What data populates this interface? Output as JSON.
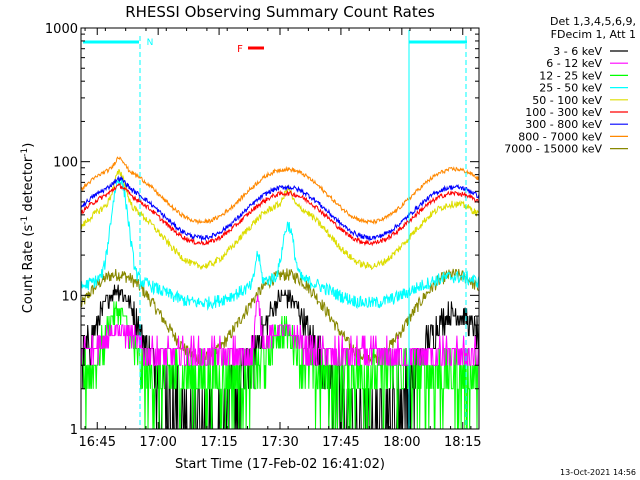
{
  "chart_data": {
    "type": "line",
    "title": "RHESSI Observing Summary Count Rates",
    "xlabel": "Start Time (17-Feb-02 16:41:02)",
    "ylabel_main": "Count Rate (s",
    "ylabel_sup1": "-1",
    "ylabel_mid": " detector",
    "ylabel_sup2": "-1",
    "ylabel_end": ")",
    "yscale": "log",
    "ylim": [
      1,
      1000
    ],
    "xlim_minutes": [
      0,
      98
    ],
    "x_ticks": [
      {
        "label": "16:45",
        "min": 4
      },
      {
        "label": "17:00",
        "min": 19
      },
      {
        "label": "17:15",
        "min": 34
      },
      {
        "label": "17:30",
        "min": 49
      },
      {
        "label": "17:45",
        "min": 64
      },
      {
        "label": "18:00",
        "min": 79
      },
      {
        "label": "18:15",
        "min": 94
      }
    ],
    "y_ticks": [
      {
        "label": "1",
        "value": 1
      },
      {
        "label": "10",
        "value": 10
      },
      {
        "label": "100",
        "value": 100
      },
      {
        "label": "1000",
        "value": 1000
      }
    ],
    "legend_header": [
      "Det 1,3,4,5,6,9,",
      "FDecim 1, Att 1"
    ],
    "legend_placement": "right",
    "flag_labels": {
      "night": "N",
      "flare": "F"
    },
    "series": [
      {
        "name": "3 - 6 keV",
        "color": "#000000"
      },
      {
        "name": "6 - 12 keV",
        "color": "#ff00ff"
      },
      {
        "name": "12 - 25 keV",
        "color": "#00ff00"
      },
      {
        "name": "25 - 50 keV",
        "color": "#00ffff"
      },
      {
        "name": "50 - 100 keV",
        "color": "#dddd00"
      },
      {
        "name": "100 - 300 keV",
        "color": "#ff0000"
      },
      {
        "name": "300 - 800 keV",
        "color": "#0000ff"
      },
      {
        "name": "800 - 7000 keV",
        "color": "#ff8800"
      },
      {
        "name": "7000 - 15000 keV",
        "color": "#888800"
      }
    ],
    "timestamp": "13-Oct-2021 14:56"
  }
}
